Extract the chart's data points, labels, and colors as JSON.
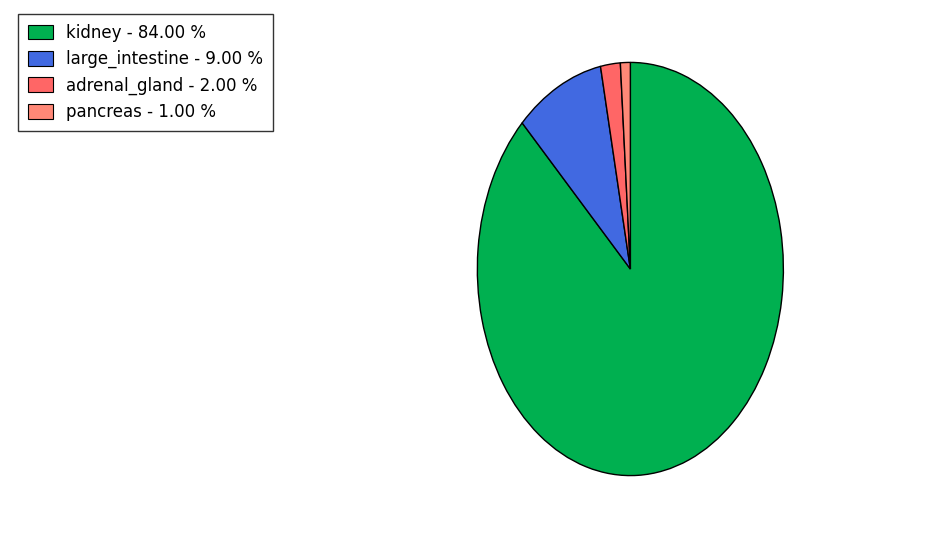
{
  "labels": [
    "kidney",
    "large_intestine",
    "adrenal_gland",
    "pancreas"
  ],
  "values": [
    84.0,
    9.0,
    2.0,
    1.0
  ],
  "colors": [
    "#00b050",
    "#4169e1",
    "#ff6666",
    "#ff8877"
  ],
  "legend_labels": [
    "kidney - 84.00 %",
    "large_intestine - 9.00 %",
    "adrenal_gland - 2.00 %",
    "pancreas - 1.00 %"
  ],
  "startangle": 90,
  "figsize": [
    9.27,
    5.38
  ],
  "dpi": 100
}
